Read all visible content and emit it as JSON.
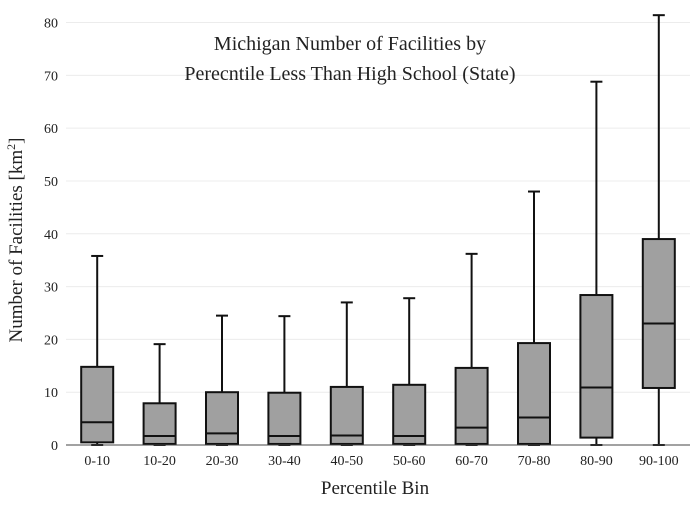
{
  "chart_data": {
    "type": "box",
    "title_lines": [
      "Michigan Number of Facilities by",
      "Perecntile Less Than High School (State)"
    ],
    "xlabel": "Percentile Bin",
    "ylabel_main": "Number of Facilities  [km",
    "ylabel_sup": "2",
    "ylabel_end": "]",
    "ylim": [
      0,
      82
    ],
    "yticks": [
      0,
      10,
      20,
      30,
      40,
      50,
      60,
      70,
      80
    ],
    "grid": true,
    "box_fill": "#a0a0a0",
    "line_color": "#111111",
    "categories": [
      "0-10",
      "10-20",
      "20-30",
      "30-40",
      "40-50",
      "50-60",
      "60-70",
      "70-80",
      "80-90",
      "90-100"
    ],
    "boxes": [
      {
        "min": 0,
        "q1": 0.5,
        "median": 4.3,
        "q3": 14.8,
        "max": 35.8
      },
      {
        "min": 0,
        "q1": 0.2,
        "median": 1.7,
        "q3": 7.9,
        "max": 19.1
      },
      {
        "min": 0,
        "q1": 0.2,
        "median": 2.2,
        "q3": 10.0,
        "max": 24.5
      },
      {
        "min": 0,
        "q1": 0.2,
        "median": 1.7,
        "q3": 9.9,
        "max": 24.4
      },
      {
        "min": 0,
        "q1": 0.2,
        "median": 1.8,
        "q3": 11.0,
        "max": 27.0
      },
      {
        "min": 0,
        "q1": 0.2,
        "median": 1.7,
        "q3": 11.4,
        "max": 27.8
      },
      {
        "min": 0,
        "q1": 0.2,
        "median": 3.3,
        "q3": 14.6,
        "max": 36.2
      },
      {
        "min": 0,
        "q1": 0.2,
        "median": 5.2,
        "q3": 19.3,
        "max": 48.0
      },
      {
        "min": 0,
        "q1": 1.4,
        "median": 10.9,
        "q3": 28.4,
        "max": 68.8
      },
      {
        "min": 0,
        "q1": 10.8,
        "median": 23.0,
        "q3": 39.0,
        "max": 81.4
      }
    ]
  }
}
